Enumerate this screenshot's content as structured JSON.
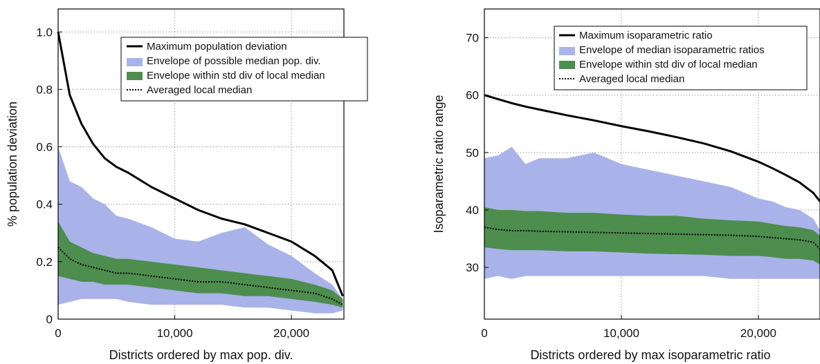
{
  "chart_data": [
    {
      "type": "area",
      "xlabel": "Districts ordered by max pop. div.",
      "ylabel": "% population deviation",
      "xlim": [
        0,
        24500
      ],
      "ylim": [
        0,
        1.08
      ],
      "xticks": [
        0,
        10000,
        20000
      ],
      "xtick_labels": [
        "0",
        "10,000",
        "20,000"
      ],
      "yticks": [
        0,
        0.2,
        0.4,
        0.6,
        0.8,
        1.0
      ],
      "ytick_labels": [
        "0",
        "0.2",
        "0.4",
        "0.6",
        "0.8",
        "1.0"
      ],
      "grid": true,
      "legend": {
        "placement": "top-center",
        "entries": [
          "Maximum population deviation",
          "Envelope of possible median pop. div.",
          "Envelope within std div of local median",
          "Averaged local median"
        ]
      },
      "x": [
        0,
        1000,
        2000,
        3000,
        4000,
        5000,
        6000,
        8000,
        10000,
        12000,
        14000,
        16000,
        18000,
        20000,
        22000,
        23500,
        24400
      ],
      "series": [
        {
          "name": "Maximum population deviation",
          "kind": "line",
          "color": "#000000",
          "values": [
            1.0,
            0.78,
            0.68,
            0.61,
            0.56,
            0.53,
            0.51,
            0.46,
            0.42,
            0.38,
            0.35,
            0.33,
            0.3,
            0.27,
            0.22,
            0.17,
            0.08
          ]
        },
        {
          "name": "Envelope of possible median pop. div.",
          "kind": "band",
          "color": "#a9b3ea",
          "upper": [
            0.6,
            0.48,
            0.46,
            0.42,
            0.4,
            0.36,
            0.35,
            0.32,
            0.28,
            0.27,
            0.3,
            0.32,
            0.26,
            0.22,
            0.16,
            0.12,
            0.07
          ],
          "lower": [
            0.05,
            0.06,
            0.07,
            0.07,
            0.07,
            0.07,
            0.06,
            0.05,
            0.05,
            0.05,
            0.05,
            0.04,
            0.04,
            0.03,
            0.02,
            0.02,
            0.03
          ]
        },
        {
          "name": "Envelope within std div of local median",
          "kind": "band",
          "color": "#4d8d4e",
          "upper": [
            0.34,
            0.27,
            0.25,
            0.23,
            0.22,
            0.21,
            0.21,
            0.2,
            0.19,
            0.18,
            0.17,
            0.16,
            0.15,
            0.14,
            0.12,
            0.1,
            0.07
          ],
          "lower": [
            0.15,
            0.14,
            0.13,
            0.13,
            0.12,
            0.12,
            0.12,
            0.11,
            0.1,
            0.09,
            0.09,
            0.08,
            0.08,
            0.07,
            0.06,
            0.05,
            0.04
          ]
        },
        {
          "name": "Averaged local median",
          "kind": "dotted",
          "color": "#000000",
          "values": [
            0.25,
            0.21,
            0.19,
            0.18,
            0.17,
            0.16,
            0.16,
            0.15,
            0.14,
            0.13,
            0.13,
            0.12,
            0.11,
            0.1,
            0.09,
            0.07,
            0.05
          ]
        }
      ]
    },
    {
      "type": "area",
      "xlabel": "Districts ordered by max isoparametric ratio",
      "ylabel": "Isoparametric ratio range",
      "xlim": [
        0,
        24500
      ],
      "ylim": [
        21,
        75
      ],
      "xticks": [
        0,
        10000,
        20000
      ],
      "xtick_labels": [
        "0",
        "10,000",
        "20,000"
      ],
      "yticks": [
        30,
        40,
        50,
        60,
        70
      ],
      "ytick_labels": [
        "30",
        "40",
        "50",
        "60",
        "70"
      ],
      "grid": true,
      "legend": {
        "placement": "top-center",
        "entries": [
          "Maximum isoparametric ratio",
          "Envelope of median isoparametric ratios",
          "Envelope within std div of local median",
          "Averaged local median"
        ]
      },
      "x": [
        0,
        1000,
        2000,
        3000,
        4000,
        6000,
        8000,
        10000,
        12000,
        14000,
        16000,
        18000,
        20000,
        21000,
        22000,
        23000,
        24000,
        24500
      ],
      "series": [
        {
          "name": "Maximum isoparametric ratio",
          "kind": "line",
          "color": "#000000",
          "values": [
            60,
            59.3,
            58.6,
            58.0,
            57.5,
            56.5,
            55.6,
            54.6,
            53.7,
            52.7,
            51.6,
            50.2,
            48.4,
            47.3,
            46.1,
            44.8,
            43.0,
            41.5
          ]
        },
        {
          "name": "Envelope of median isoparametric ratios",
          "kind": "band",
          "color": "#a9b3ea",
          "upper": [
            49,
            49.5,
            51,
            48,
            49,
            49,
            50,
            48,
            47,
            46,
            45,
            44,
            42,
            41.5,
            40.5,
            40,
            38.5,
            36.5
          ],
          "lower": [
            28,
            28.5,
            28,
            28.5,
            28.5,
            28.5,
            28.5,
            28.5,
            28.5,
            28.5,
            28.5,
            28,
            28,
            28,
            28,
            28,
            28,
            28
          ]
        },
        {
          "name": "Envelope within std div of local median",
          "kind": "band",
          "color": "#4d8d4e",
          "upper": [
            40.5,
            40,
            40,
            39.8,
            39.8,
            39.5,
            39.5,
            39.2,
            39,
            39,
            38.5,
            38.2,
            38,
            37.6,
            37.2,
            37,
            36.5,
            35.5
          ],
          "lower": [
            33.5,
            33.2,
            33,
            33,
            33,
            32.8,
            32.8,
            32.6,
            32.4,
            32.3,
            32.2,
            32,
            32,
            31.8,
            31.5,
            31.5,
            31.2,
            30.5
          ]
        },
        {
          "name": "Averaged local median",
          "kind": "dotted",
          "color": "#000000",
          "values": [
            37,
            36.6,
            36.4,
            36.4,
            36.3,
            36.2,
            36.1,
            36.0,
            35.9,
            35.8,
            35.7,
            35.6,
            35.4,
            35.2,
            35.0,
            34.8,
            34.4,
            33.2
          ]
        }
      ]
    }
  ]
}
